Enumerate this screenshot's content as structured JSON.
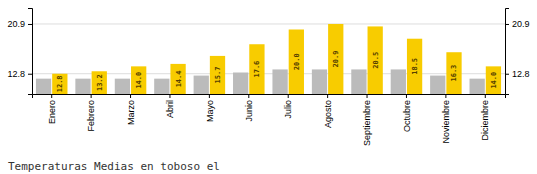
{
  "chart_data": {
    "type": "bar",
    "title": "Temperaturas Medias en toboso el",
    "categories": [
      "Enero",
      "Febrero",
      "Marzo",
      "Abril",
      "Mayo",
      "Junio",
      "Julio",
      "Agosto",
      "Septiembre",
      "Octubre",
      "Noviembre",
      "Diciembre"
    ],
    "series": [
      {
        "color": "#BBBBBB",
        "values": [
          12.0,
          12.0,
          12.0,
          12.0,
          12.5,
          13.0,
          13.5,
          13.5,
          13.5,
          13.5,
          12.5,
          12.0
        ]
      },
      {
        "color": "#F8CC00",
        "values": [
          12.8,
          13.2,
          14.0,
          14.4,
          15.7,
          17.6,
          20.0,
          20.9,
          20.5,
          18.5,
          16.3,
          14.0
        ],
        "data_labels": true,
        "value_labels": [
          "12.8",
          "13.2",
          "14.0",
          "14.4",
          "15.7",
          "17.6",
          "20.0",
          "20.9",
          "20.5",
          "18.5",
          "16.3",
          "14.0"
        ]
      }
    ],
    "ylim": [
      9.5,
      23.5
    ],
    "yticks": [
      12.8,
      20.9
    ],
    "y2lim": [
      9.5,
      23.5
    ],
    "y2ticks": [
      12.8,
      20.9
    ],
    "grid": true
  }
}
